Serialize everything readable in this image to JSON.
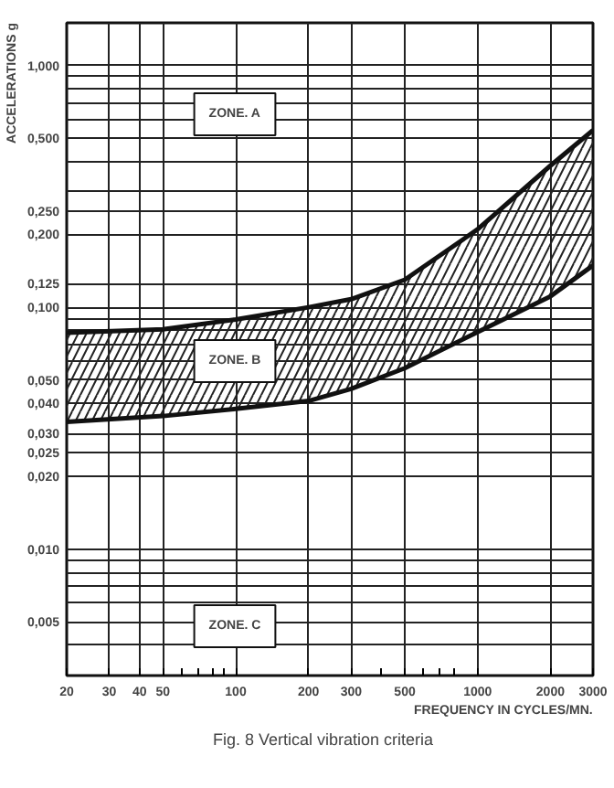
{
  "chart_data": {
    "type": "line",
    "xlabel": "FREQUENCY IN CYCLES/MN.",
    "ylabel": "ACCELERATIONS g",
    "annotations": [
      "ZONE. A",
      "ZONE. B",
      "ZONE. C",
      "Fig. 8    Vertical vibration criteria"
    ],
    "x": [
      20,
      50,
      100,
      200,
      300,
      500,
      1000,
      2000,
      3000
    ],
    "series": [
      {
        "color": "#111111",
        "values": [
          0.0785,
          0.081,
          0.089,
          0.1,
          0.108,
          0.13,
          0.21,
          0.385,
          0.54
        ]
      },
      {
        "color": "#111111",
        "values": [
          0.0336,
          0.0355,
          0.038,
          0.041,
          0.046,
          0.056,
          0.079,
          0.111,
          0.149
        ],
        "lower": [
          0.0336,
          0.0355,
          0.038,
          0.041,
          0.046,
          0.056,
          0.079,
          0.111,
          0.149
        ],
        "upper": [
          0.0785,
          0.081,
          0.089,
          0.1,
          0.108,
          0.13,
          0.21,
          0.385,
          0.54
        ]
      }
    ],
    "log": "xy",
    "xlim": [
      20,
      3000
    ],
    "ylim": [
      0.003,
      1.5
    ],
    "xticks": [
      20,
      30,
      40,
      50,
      {
        "value": 60,
        "label": null
      },
      {
        "value": 70,
        "label": null
      },
      {
        "value": 80,
        "label": null
      },
      {
        "value": 90,
        "label": null
      },
      100,
      200,
      300,
      {
        "value": 400,
        "label": null
      },
      500,
      {
        "value": 600,
        "label": null
      },
      {
        "value": 700,
        "label": null
      },
      {
        "value": 800,
        "label": null
      },
      1000,
      2000,
      3000
    ],
    "yticks": [
      {
        "value": 1.0,
        "label": "1,000"
      },
      {
        "value": 0.9,
        "label": null
      },
      {
        "value": 0.8,
        "label": null
      },
      {
        "value": 0.7,
        "label": null
      },
      {
        "value": 0.6,
        "label": null
      },
      {
        "value": 0.5,
        "label": "0,500"
      },
      {
        "value": 0.4,
        "label": null
      },
      {
        "value": 0.3,
        "label": null
      },
      {
        "value": 0.25,
        "label": "0,250"
      },
      {
        "value": 0.2,
        "label": "0,200"
      },
      {
        "value": 0.125,
        "label": "0,125"
      },
      {
        "value": 0.1,
        "label": "0,100"
      },
      {
        "value": 0.09,
        "label": null
      },
      {
        "value": 0.08,
        "label": null
      },
      {
        "value": 0.07,
        "label": null
      },
      {
        "value": 0.06,
        "label": null
      },
      {
        "value": 0.05,
        "label": "0,050"
      },
      {
        "value": 0.04,
        "label": "0,040"
      },
      {
        "value": 0.03,
        "label": "0,030"
      },
      {
        "value": 0.025,
        "label": "0,025"
      },
      {
        "value": 0.02,
        "label": "0,020"
      },
      {
        "value": 0.01,
        "label": "0,010"
      },
      {
        "value": 0.009,
        "label": null
      },
      {
        "value": 0.008,
        "label": null
      },
      {
        "value": 0.007,
        "label": null
      },
      {
        "value": 0.006,
        "label": null
      },
      {
        "value": 0.005,
        "label": "0,005"
      },
      {
        "value": 0.004,
        "label": null
      }
    ],
    "grid": true,
    "marker": "none",
    "line_style": "solid"
  }
}
